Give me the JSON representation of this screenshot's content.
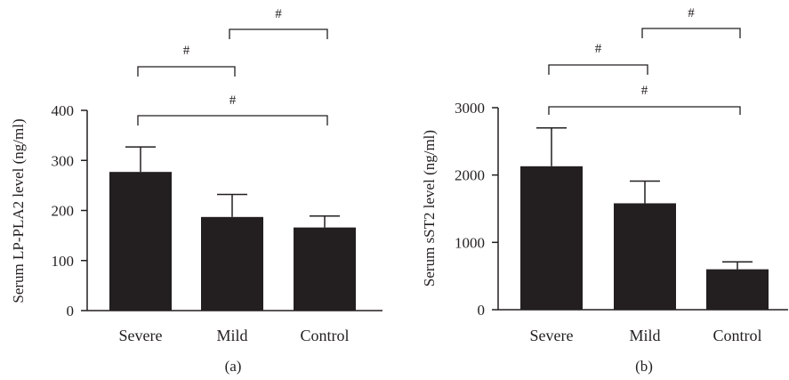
{
  "chart_data": [
    {
      "type": "bar",
      "panel_label": "(a)",
      "title": "",
      "ylabel": "Serum LP-PLA2 level (ng/ml)",
      "xlabel": "",
      "categories": [
        "Severe",
        "Mild",
        "Control"
      ],
      "values": [
        277,
        187,
        166
      ],
      "errors": [
        50,
        45,
        23
      ],
      "ylim": [
        0,
        400
      ],
      "yticks": [
        0,
        100,
        200,
        300,
        400
      ],
      "ytick_labels": [
        "0",
        "100",
        "200",
        "300",
        "400"
      ],
      "bar_color": "#231f20",
      "grid": false,
      "comparisons": [
        {
          "from": "Severe",
          "to": "Mild",
          "label": "#"
        },
        {
          "from": "Mild",
          "to": "Control",
          "label": "#"
        },
        {
          "from": "Severe",
          "to": "Control",
          "label": "#"
        }
      ]
    },
    {
      "type": "bar",
      "panel_label": "(b)",
      "title": "",
      "ylabel": "Serum sST2 level (ng/ml)",
      "xlabel": "",
      "categories": [
        "Severe",
        "Mild",
        "Control"
      ],
      "values": [
        2130,
        1580,
        600
      ],
      "errors": [
        570,
        330,
        110
      ],
      "ylim": [
        0,
        3000
      ],
      "yticks": [
        0,
        1000,
        2000,
        3000
      ],
      "ytick_labels": [
        "0",
        "1000",
        "2000",
        "3000"
      ],
      "bar_color": "#231f20",
      "grid": false,
      "comparisons": [
        {
          "from": "Severe",
          "to": "Mild",
          "label": "#"
        },
        {
          "from": "Mild",
          "to": "Control",
          "label": "#"
        },
        {
          "from": "Severe",
          "to": "Control",
          "label": "#"
        }
      ]
    }
  ]
}
